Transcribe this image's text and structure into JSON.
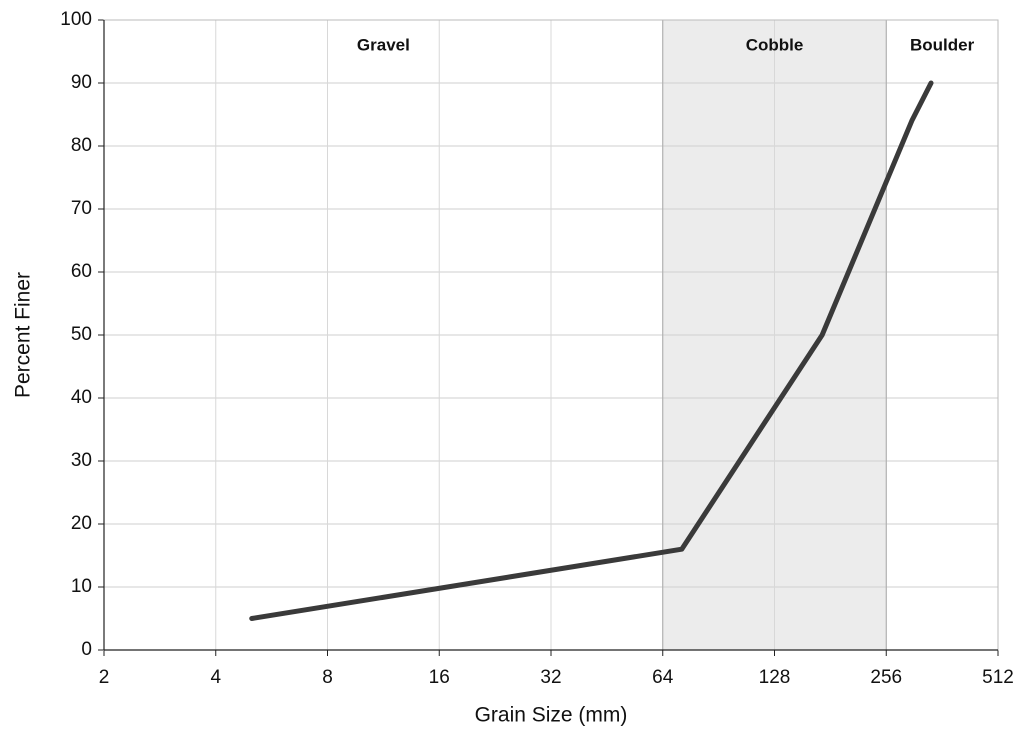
{
  "chart_data": {
    "type": "line",
    "x_label": "Grain Size (mm)",
    "y_label": "Percent Finer",
    "x": [
      5,
      72,
      172,
      300,
      338
    ],
    "series": [
      {
        "color": "#3a3a3a",
        "values": [
          5,
          16,
          50,
          84,
          90
        ]
      }
    ],
    "xscale": "log2",
    "xlim": [
      2,
      512
    ],
    "xticks": [
      2,
      4,
      8,
      16,
      32,
      64,
      128,
      256,
      512
    ],
    "ylim": [
      0,
      100
    ],
    "yticks": [
      0,
      10,
      20,
      30,
      40,
      50,
      60,
      70,
      80,
      90,
      100
    ],
    "grid": true,
    "regions": [
      {
        "label": "Gravel",
        "range": [
          2,
          64
        ],
        "shade": null
      },
      {
        "label": "Cobble",
        "range": [
          64,
          256
        ],
        "shade": "#ececec"
      },
      {
        "label": "Boulder",
        "range": [
          256,
          512
        ],
        "shade": null
      }
    ]
  }
}
